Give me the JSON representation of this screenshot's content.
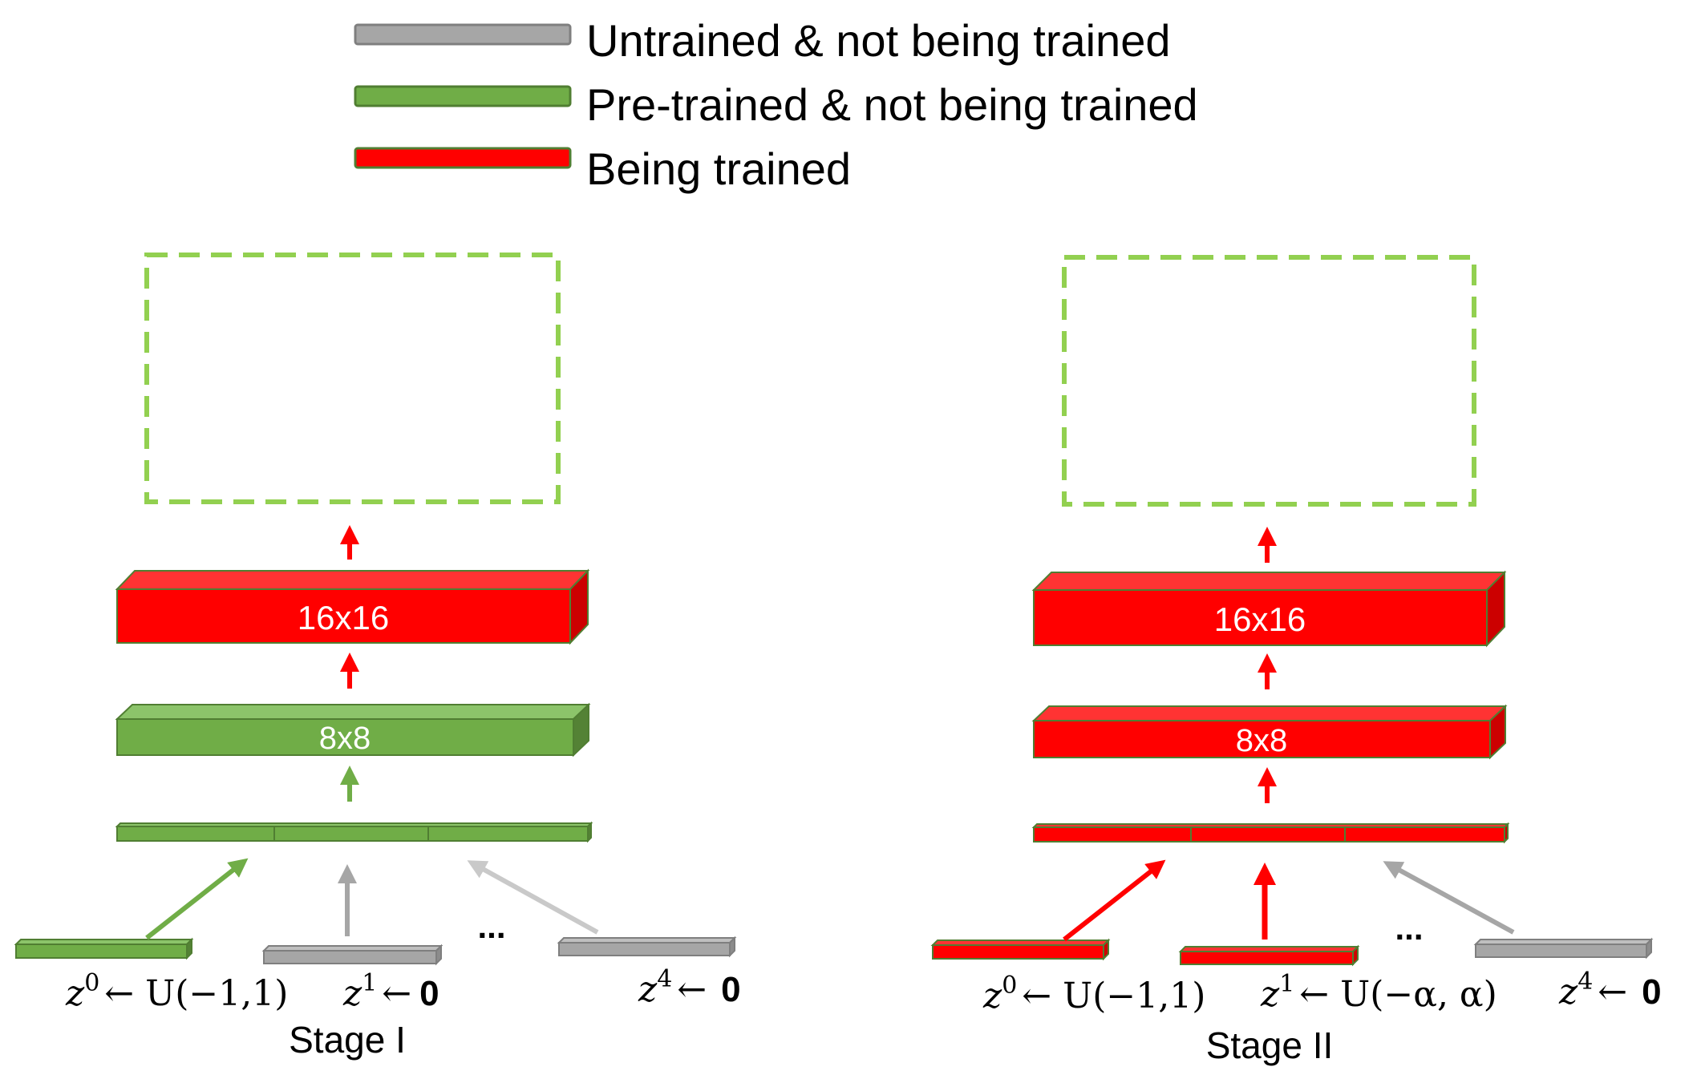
{
  "colors": {
    "untrained": "#a6a6a6",
    "pretrained": "#70ad47",
    "training": "#ff0000",
    "output_border": "#92d050"
  },
  "legend": {
    "untrained": "Untrained & not being trained",
    "pretrained": "Pre-trained & not being trained",
    "training": "Being trained"
  },
  "stage1": {
    "label": "Stage I",
    "block_16": "16x16",
    "block_8": "8x8",
    "ellipsis": "...",
    "z0": {
      "var": "z",
      "sup": "0",
      "rhs": "← U(−1,1)"
    },
    "z1": {
      "var": "z",
      "sup": "1",
      "arrow": "←",
      "bold": "0"
    },
    "z4": {
      "var": "z",
      "sup": "4",
      "arrow": "←",
      "bold": "0"
    }
  },
  "stage2": {
    "label": "Stage II",
    "block_16": "16x16",
    "block_8": "8x8",
    "ellipsis": "...",
    "z0": {
      "var": "z",
      "sup": "0",
      "rhs": "← U(−1,1)"
    },
    "z1": {
      "var": "z",
      "sup": "1",
      "rhs": "← U(−α, α)"
    },
    "z4": {
      "var": "z",
      "sup": "4",
      "arrow": "←",
      "bold": "0"
    }
  }
}
